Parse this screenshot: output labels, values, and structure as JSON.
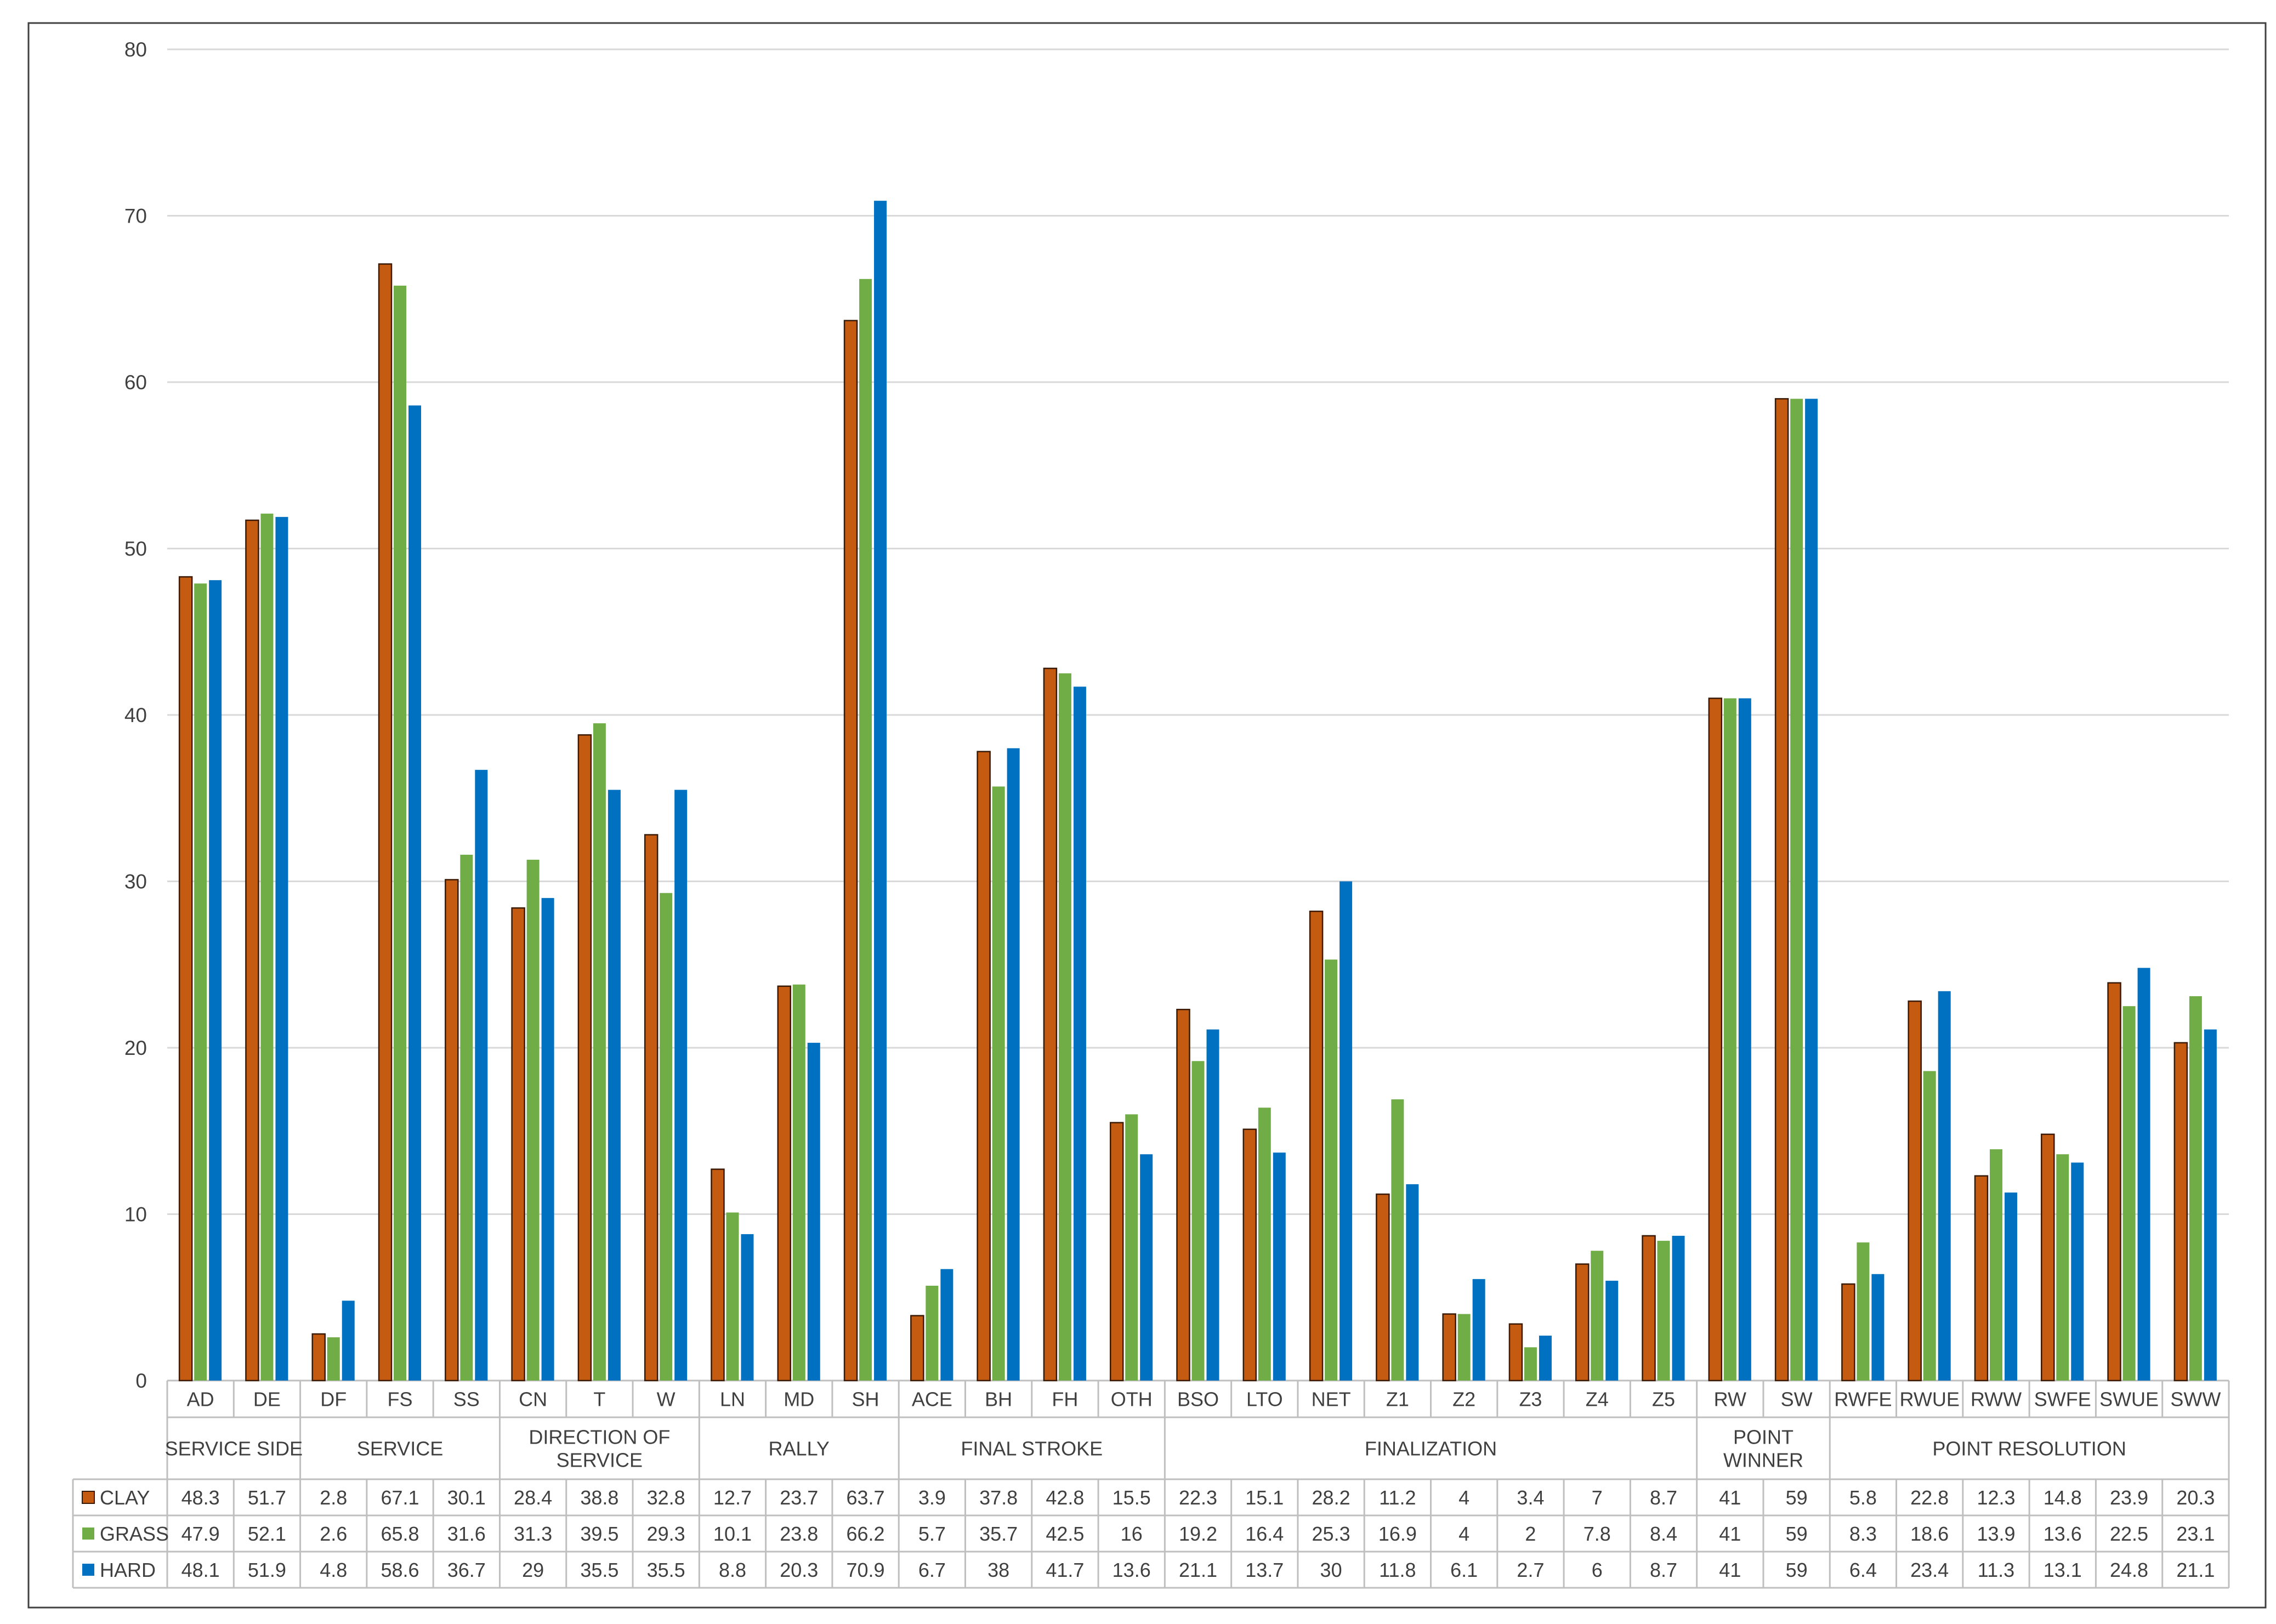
{
  "chart_data": {
    "type": "bar",
    "title": "",
    "xlabel": "",
    "ylabel": "",
    "ylim": [
      0,
      80
    ],
    "yticks": [
      0,
      10,
      20,
      30,
      40,
      50,
      60,
      70,
      80
    ],
    "grid": true,
    "legend_placement": "data-table-left",
    "categories": [
      "AD",
      "DE",
      "DF",
      "FS",
      "SS",
      "CN",
      "T",
      "W",
      "LN",
      "MD",
      "SH",
      "ACE",
      "BH",
      "FH",
      "OTH",
      "BSO",
      "LTO",
      "NET",
      "Z1",
      "Z2",
      "Z3",
      "Z4",
      "Z5",
      "RW",
      "SW",
      "RWFE",
      "RWUE",
      "RWW",
      "SWFE",
      "SWUE",
      "SWW"
    ],
    "groups": [
      {
        "name": "SERVICE SIDE",
        "lines": [
          "SERVICE SIDE"
        ],
        "span": 2
      },
      {
        "name": "SERVICE",
        "lines": [
          "SERVICE"
        ],
        "span": 3
      },
      {
        "name": "DIRECTION OF SERVICE",
        "lines": [
          "DIRECTION OF",
          "SERVICE"
        ],
        "span": 3
      },
      {
        "name": "RALLY",
        "lines": [
          "RALLY"
        ],
        "span": 3
      },
      {
        "name": "FINAL STROKE",
        "lines": [
          "FINAL STROKE"
        ],
        "span": 4
      },
      {
        "name": "FINALIZATION",
        "lines": [
          "FINALIZATION"
        ],
        "span": 8
      },
      {
        "name": "POINT WINNER",
        "lines": [
          "POINT",
          "WINNER"
        ],
        "span": 2
      },
      {
        "name": "POINT RESOLUTION",
        "lines": [
          "POINT RESOLUTION"
        ],
        "span": 6
      }
    ],
    "series": [
      {
        "name": "CLAY",
        "color": "#c55a11",
        "values": [
          48.3,
          51.7,
          2.8,
          67.1,
          30.1,
          28.4,
          38.8,
          32.8,
          12.7,
          23.7,
          63.7,
          3.9,
          37.8,
          42.8,
          15.5,
          22.3,
          15.1,
          28.2,
          11.2,
          4,
          3.4,
          7,
          8.7,
          41,
          59,
          5.8,
          22.8,
          12.3,
          14.8,
          23.9,
          20.3
        ]
      },
      {
        "name": "GRASS",
        "color": "#70ad47",
        "values": [
          47.9,
          52.1,
          2.6,
          65.8,
          31.6,
          31.3,
          39.5,
          29.3,
          10.1,
          23.8,
          66.2,
          5.7,
          35.7,
          42.5,
          16,
          19.2,
          16.4,
          25.3,
          16.9,
          4,
          2,
          7.8,
          8.4,
          41,
          59,
          8.3,
          18.6,
          13.9,
          13.6,
          22.5,
          23.1
        ]
      },
      {
        "name": "HARD",
        "color": "#0070c0",
        "values": [
          48.1,
          51.9,
          4.8,
          58.6,
          36.7,
          29,
          35.5,
          35.5,
          8.8,
          20.3,
          70.9,
          6.7,
          38,
          41.7,
          13.6,
          21.1,
          13.7,
          30,
          11.8,
          6.1,
          2.7,
          6,
          8.7,
          41,
          59,
          6.4,
          23.4,
          11.3,
          13.1,
          24.8,
          21.1
        ]
      }
    ]
  }
}
